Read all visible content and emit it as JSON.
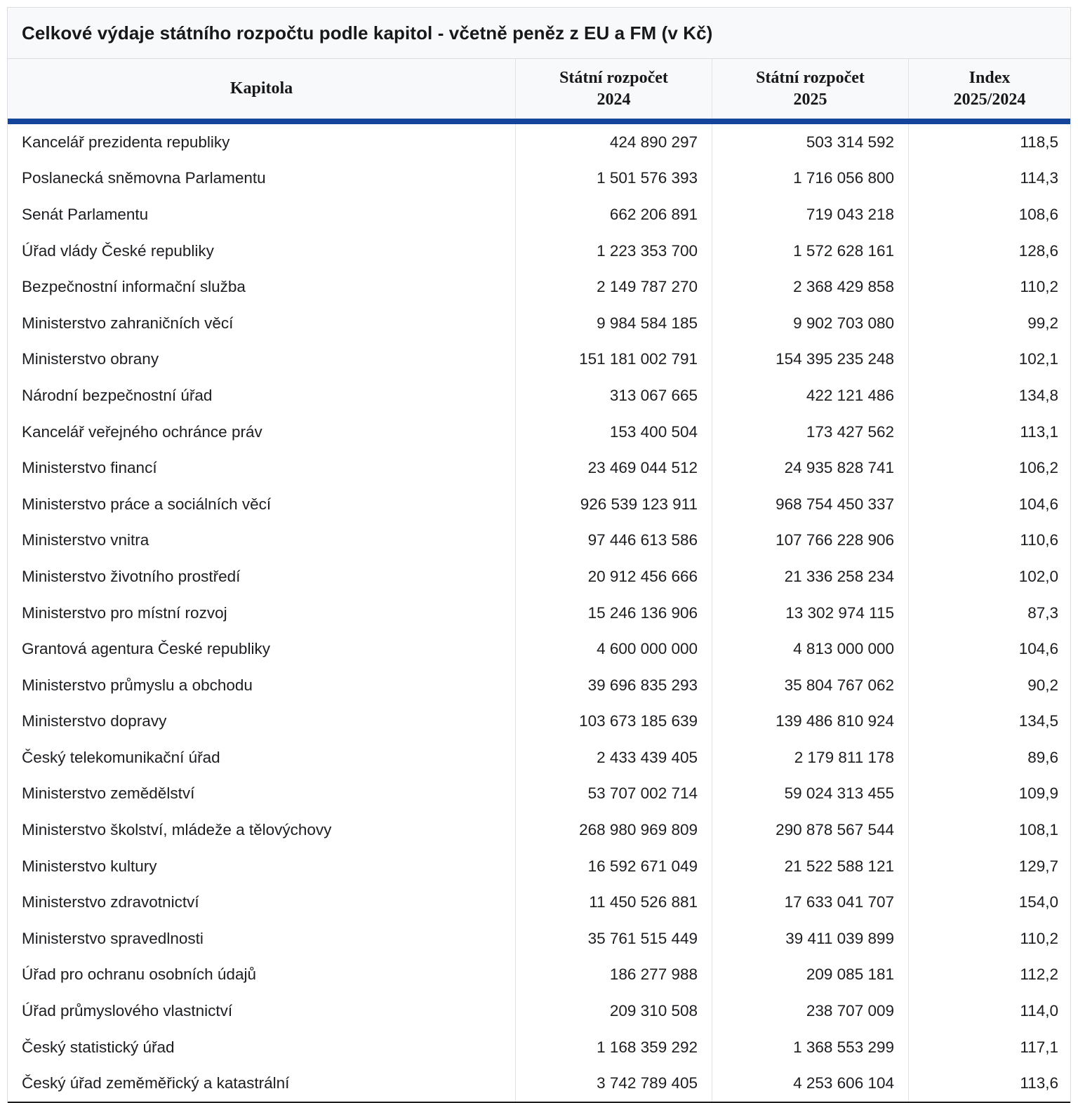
{
  "title": "Celkové výdaje státního rozpočtu podle kapitol - včetně peněz z EU a FM (v Kč)",
  "colors": {
    "header_underline_blue": "#14459B",
    "header_background": "#f8f9fb",
    "table_border": "#dcdde1",
    "column_separator": "#e2e3e7",
    "bottom_border_dark": "#1d1d1d",
    "text": "#1c1d20"
  },
  "chart_data": {
    "type": "table",
    "title": "Celkové výdaje státního rozpočtu podle kapitol - včetně peněz z EU a FM (v Kč)",
    "columns": [
      {
        "line1": "Kapitola",
        "line2": ""
      },
      {
        "line1": "Státní rozpočet",
        "line2": "2024"
      },
      {
        "line1": "Státní rozpočet",
        "line2": "2025"
      },
      {
        "line1": "Index",
        "line2": "2025/2024"
      }
    ],
    "rows": [
      {
        "kapitola": "Kancelář prezidenta republiky",
        "sr_2024": "424 890 297",
        "sr_2025": "503 314 592",
        "index": "118,5"
      },
      {
        "kapitola": "Poslanecká sněmovna Parlamentu",
        "sr_2024": "1 501 576 393",
        "sr_2025": "1 716 056 800",
        "index": "114,3"
      },
      {
        "kapitola": "Senát Parlamentu",
        "sr_2024": "662 206 891",
        "sr_2025": "719 043 218",
        "index": "108,6"
      },
      {
        "kapitola": "Úřad vlády České republiky",
        "sr_2024": "1 223 353 700",
        "sr_2025": "1 572 628 161",
        "index": "128,6"
      },
      {
        "kapitola": "Bezpečnostní informační služba",
        "sr_2024": "2 149 787 270",
        "sr_2025": "2 368 429 858",
        "index": "110,2"
      },
      {
        "kapitola": "Ministerstvo zahraničních věcí",
        "sr_2024": "9 984 584 185",
        "sr_2025": "9 902 703 080",
        "index": "99,2"
      },
      {
        "kapitola": "Ministerstvo obrany",
        "sr_2024": "151 181 002 791",
        "sr_2025": "154 395 235 248",
        "index": "102,1"
      },
      {
        "kapitola": "Národní bezpečnostní úřad",
        "sr_2024": "313 067 665",
        "sr_2025": "422 121 486",
        "index": "134,8"
      },
      {
        "kapitola": "Kancelář veřejného ochránce práv",
        "sr_2024": "153 400 504",
        "sr_2025": "173 427 562",
        "index": "113,1"
      },
      {
        "kapitola": "Ministerstvo financí",
        "sr_2024": "23 469 044 512",
        "sr_2025": "24 935 828 741",
        "index": "106,2"
      },
      {
        "kapitola": "Ministerstvo práce a sociálních věcí",
        "sr_2024": "926 539 123 911",
        "sr_2025": "968 754 450 337",
        "index": "104,6"
      },
      {
        "kapitola": "Ministerstvo vnitra",
        "sr_2024": "97 446 613 586",
        "sr_2025": "107 766 228 906",
        "index": "110,6"
      },
      {
        "kapitola": "Ministerstvo životního prostředí",
        "sr_2024": "20 912 456 666",
        "sr_2025": "21 336 258 234",
        "index": "102,0"
      },
      {
        "kapitola": "Ministerstvo pro místní rozvoj",
        "sr_2024": "15 246 136 906",
        "sr_2025": "13 302 974 115",
        "index": "87,3"
      },
      {
        "kapitola": "Grantová agentura České republiky",
        "sr_2024": "4 600 000 000",
        "sr_2025": "4 813 000 000",
        "index": "104,6"
      },
      {
        "kapitola": "Ministerstvo průmyslu a obchodu",
        "sr_2024": "39 696 835 293",
        "sr_2025": "35 804 767 062",
        "index": "90,2"
      },
      {
        "kapitola": "Ministerstvo dopravy",
        "sr_2024": "103 673 185 639",
        "sr_2025": "139 486 810 924",
        "index": "134,5"
      },
      {
        "kapitola": "Český telekomunikační úřad",
        "sr_2024": "2 433 439 405",
        "sr_2025": "2 179 811 178",
        "index": "89,6"
      },
      {
        "kapitola": "Ministerstvo zemědělství",
        "sr_2024": "53 707 002 714",
        "sr_2025": "59 024 313 455",
        "index": "109,9"
      },
      {
        "kapitola": "Ministerstvo školství, mládeže a tělovýchovy",
        "sr_2024": "268 980 969 809",
        "sr_2025": "290 878 567 544",
        "index": "108,1"
      },
      {
        "kapitola": "Ministerstvo kultury",
        "sr_2024": "16 592 671 049",
        "sr_2025": "21 522 588 121",
        "index": "129,7"
      },
      {
        "kapitola": "Ministerstvo zdravotnictví",
        "sr_2024": "11 450 526 881",
        "sr_2025": "17 633 041 707",
        "index": "154,0"
      },
      {
        "kapitola": "Ministerstvo spravedlnosti",
        "sr_2024": "35 761 515 449",
        "sr_2025": "39 411 039 899",
        "index": "110,2"
      },
      {
        "kapitola": "Úřad pro ochranu osobních údajů",
        "sr_2024": "186 277 988",
        "sr_2025": "209 085 181",
        "index": "112,2"
      },
      {
        "kapitola": "Úřad průmyslového vlastnictví",
        "sr_2024": "209 310 508",
        "sr_2025": "238 707 009",
        "index": "114,0"
      },
      {
        "kapitola": "Český statistický úřad",
        "sr_2024": "1 168 359 292",
        "sr_2025": "1 368 553 299",
        "index": "117,1"
      },
      {
        "kapitola": "Český úřad zeměměřický a katastrální",
        "sr_2024": "3 742 789 405",
        "sr_2025": "4 253 606 104",
        "index": "113,6"
      }
    ]
  }
}
